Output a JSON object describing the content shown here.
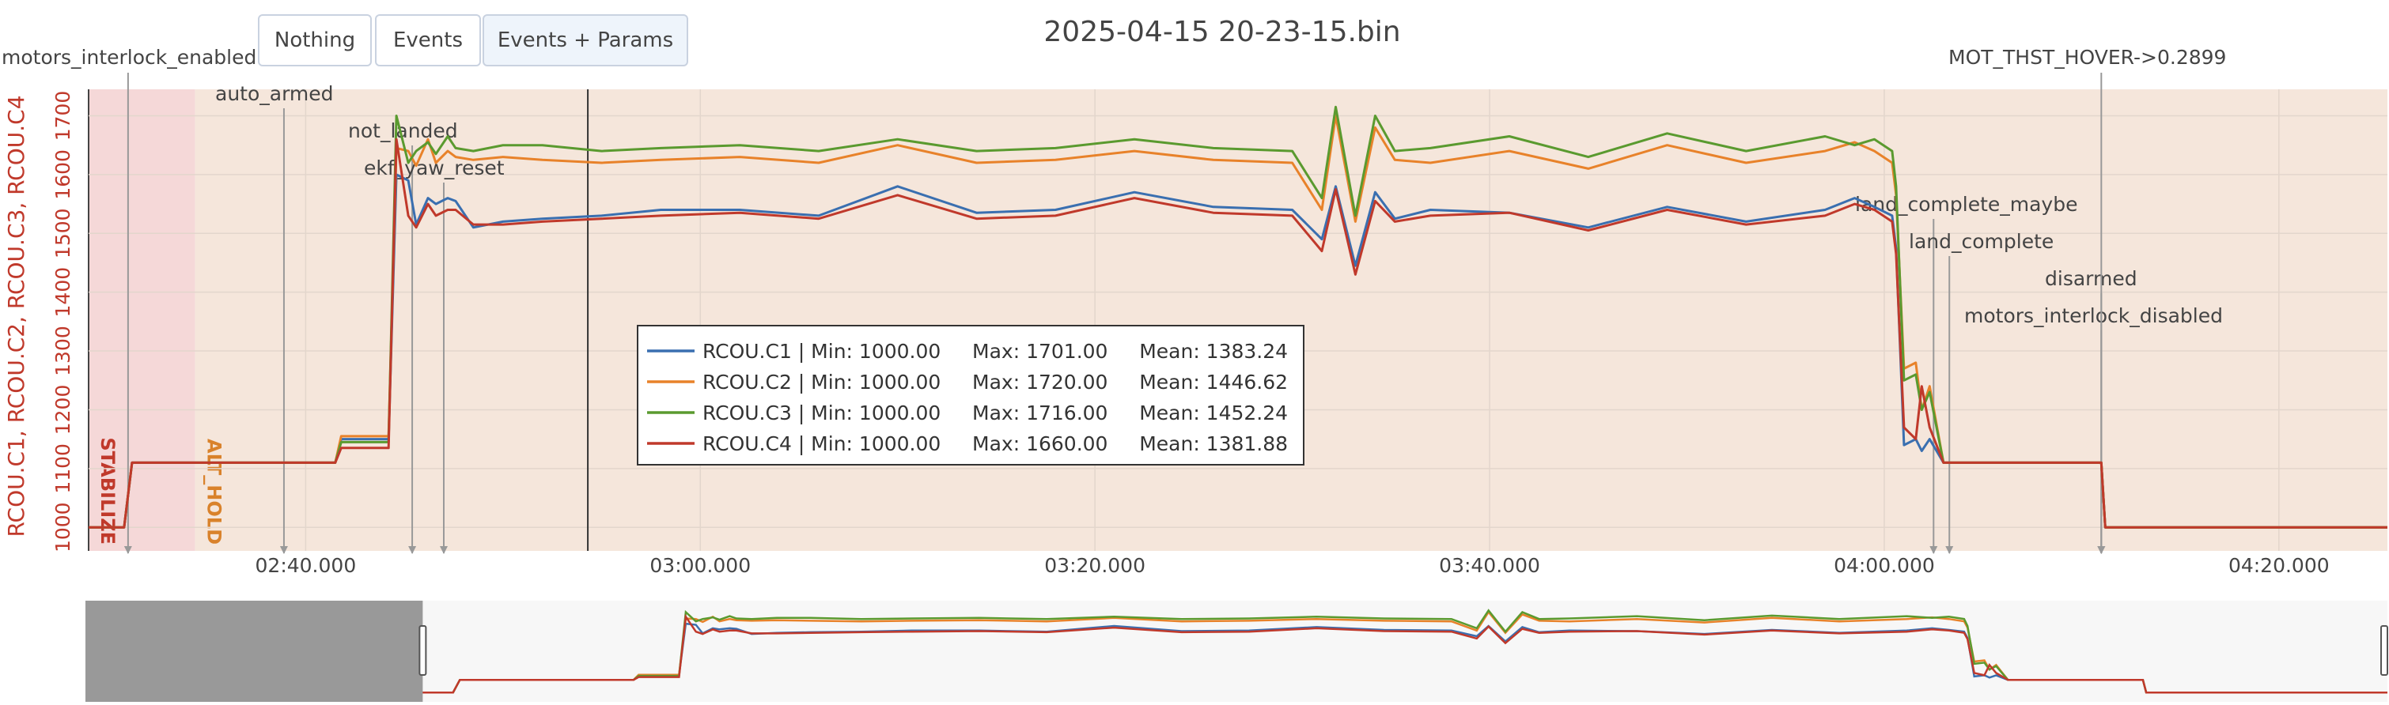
{
  "toolbar": {
    "nothing_label": "Nothing",
    "events_label": "Events",
    "events_params_label": "Events + Params"
  },
  "chart_data": {
    "type": "line",
    "title": "2025-04-15 20-23-15.bin",
    "ylabel": "RCOU.C1, RCOU.C2, RCOU.C3, RCOU.C4",
    "xlabel": "",
    "x_tick_labels": [
      "02:40.000",
      "03:00.000",
      "03:20.000",
      "03:40.000",
      "04:00.000",
      "04:20.000"
    ],
    "x_ticks_s": [
      160,
      180,
      200,
      220,
      240,
      260
    ],
    "xlim_s": [
      149.0,
      265.5
    ],
    "y_ticks": [
      1000,
      1100,
      1200,
      1300,
      1400,
      1500,
      1600,
      1700
    ],
    "ylim": [
      960,
      1745
    ],
    "grid": true,
    "legend_placement": "center",
    "series": [
      {
        "name": "RCOU.C1",
        "legend_text": "RCOU.C1 | Min: 1000.00     Max: 1701.00     Mean: 1383.24",
        "color": "#3a6fb0",
        "x": [
          149,
          150.8,
          151.2,
          161.5,
          161.8,
          164.2,
          164.6,
          165.2,
          165.6,
          166.2,
          166.6,
          167.2,
          167.6,
          168.5,
          170,
          172,
          175,
          178,
          182,
          186,
          190,
          194,
          198,
          202,
          206,
          210,
          211.5,
          212.2,
          213.2,
          214.2,
          215.2,
          217,
          221,
          225,
          229,
          233,
          237,
          238.5,
          239.5,
          240.4,
          240.6,
          241.0,
          241.6,
          241.9,
          242.3,
          243.0,
          251,
          251.2,
          265.5
        ],
        "y": [
          1000,
          1000,
          1110,
          1110,
          1150,
          1150,
          1600,
          1590,
          1515,
          1560,
          1550,
          1560,
          1555,
          1510,
          1520,
          1525,
          1530,
          1540,
          1540,
          1530,
          1580,
          1535,
          1540,
          1570,
          1545,
          1540,
          1490,
          1580,
          1445,
          1570,
          1525,
          1540,
          1535,
          1510,
          1545,
          1520,
          1540,
          1560,
          1545,
          1530,
          1475,
          1140,
          1150,
          1130,
          1150,
          1110,
          1110,
          1000,
          1000
        ]
      },
      {
        "name": "RCOU.C2",
        "legend_text": "RCOU.C2 | Min: 1000.00     Max: 1720.00     Mean: 1446.62",
        "color": "#e8822a",
        "x": [
          149,
          150.8,
          151.2,
          161.5,
          161.8,
          164.2,
          164.6,
          165.2,
          165.6,
          166.2,
          166.6,
          167.2,
          167.6,
          168.5,
          170,
          172,
          175,
          178,
          182,
          186,
          190,
          194,
          198,
          202,
          206,
          210,
          211.5,
          212.2,
          213.2,
          214.2,
          215.2,
          217,
          221,
          225,
          229,
          233,
          237,
          238.5,
          239.5,
          240.4,
          240.6,
          241.0,
          241.6,
          241.9,
          242.3,
          243.0,
          251,
          251.2,
          265.5
        ],
        "y": [
          1000,
          1000,
          1110,
          1110,
          1155,
          1155,
          1645,
          1640,
          1615,
          1660,
          1620,
          1640,
          1630,
          1625,
          1630,
          1625,
          1620,
          1625,
          1630,
          1620,
          1650,
          1620,
          1625,
          1640,
          1625,
          1620,
          1540,
          1700,
          1520,
          1680,
          1625,
          1620,
          1640,
          1610,
          1650,
          1620,
          1640,
          1655,
          1640,
          1620,
          1565,
          1270,
          1280,
          1200,
          1240,
          1110,
          1110,
          1000,
          1000
        ]
      },
      {
        "name": "RCOU.C3",
        "legend_text": "RCOU.C3 | Min: 1000.00     Max: 1716.00     Mean: 1452.24",
        "color": "#5a9a2f",
        "x": [
          149,
          150.8,
          151.2,
          161.5,
          161.8,
          164.2,
          164.6,
          165.2,
          165.6,
          166.2,
          166.6,
          167.2,
          167.6,
          168.5,
          170,
          172,
          175,
          178,
          182,
          186,
          190,
          194,
          198,
          202,
          206,
          210,
          211.5,
          212.2,
          213.2,
          214.2,
          215.2,
          217,
          221,
          225,
          229,
          233,
          237,
          238.5,
          239.5,
          240.4,
          240.6,
          241.0,
          241.6,
          241.9,
          242.3,
          243.0,
          251,
          251.2,
          265.5
        ],
        "y": [
          1000,
          1000,
          1110,
          1110,
          1145,
          1145,
          1700,
          1620,
          1640,
          1655,
          1635,
          1665,
          1645,
          1640,
          1650,
          1650,
          1640,
          1645,
          1650,
          1640,
          1660,
          1640,
          1645,
          1660,
          1645,
          1640,
          1560,
          1715,
          1530,
          1700,
          1640,
          1645,
          1665,
          1630,
          1670,
          1640,
          1665,
          1650,
          1660,
          1640,
          1580,
          1250,
          1260,
          1200,
          1230,
          1110,
          1110,
          1000,
          1000
        ]
      },
      {
        "name": "RCOU.C4",
        "legend_text": "RCOU.C4 | Min: 1000.00     Max: 1660.00     Mean: 1381.88",
        "color": "#c0392b",
        "x": [
          149,
          150.8,
          151.2,
          161.5,
          161.8,
          164.2,
          164.6,
          165.2,
          165.6,
          166.2,
          166.6,
          167.2,
          167.6,
          168.5,
          170,
          172,
          175,
          178,
          182,
          186,
          190,
          194,
          198,
          202,
          206,
          210,
          211.5,
          212.2,
          213.2,
          214.2,
          215.2,
          217,
          221,
          225,
          229,
          233,
          237,
          238.5,
          239.5,
          240.4,
          240.6,
          241.0,
          241.6,
          241.9,
          242.3,
          243.0,
          251,
          251.2,
          265.5
        ],
        "y": [
          1000,
          1000,
          1110,
          1110,
          1135,
          1135,
          1660,
          1530,
          1510,
          1550,
          1530,
          1540,
          1540,
          1515,
          1515,
          1520,
          1525,
          1530,
          1535,
          1525,
          1565,
          1525,
          1530,
          1560,
          1535,
          1530,
          1470,
          1575,
          1430,
          1555,
          1520,
          1530,
          1535,
          1505,
          1540,
          1515,
          1530,
          1550,
          1540,
          1520,
          1465,
          1170,
          1150,
          1240,
          1170,
          1110,
          1110,
          1000,
          1000
        ]
      }
    ],
    "flight_modes": [
      {
        "label": "STABILIZE",
        "start_s": 149.0,
        "end_s": 154.4,
        "color": "#f5d8d8",
        "text_color": "#c0392b"
      },
      {
        "label": "ALT_HOLD",
        "start_s": 154.4,
        "end_s": 265.5,
        "color": "#f5e6db",
        "text_color": "#d9822b"
      }
    ],
    "events": [
      {
        "label": "motors_interlock_enabled",
        "x_s": 151.0
      },
      {
        "label": "auto_armed",
        "x_s": 158.9
      },
      {
        "label": "not_landed",
        "x_s": 165.4
      },
      {
        "label": "ekf_yaw_reset",
        "x_s": 167.0
      },
      {
        "label": "land_complete_maybe",
        "x_s": 242.5
      },
      {
        "label": "land_complete",
        "x_s": 243.3
      },
      {
        "label": "disarmed",
        "x_s": 251.0
      },
      {
        "label": "motors_interlock_disabled",
        "x_s": 251.0
      },
      {
        "label": "MOT_THST_HOVER->0.2899",
        "x_s": 251.0
      }
    ],
    "cursor_s": 174.3,
    "navigator": {
      "xlim_s": [
        129.0,
        265.5
      ],
      "selection_s": [
        149.0,
        265.5
      ],
      "ylim": [
        960,
        1745
      ]
    }
  }
}
